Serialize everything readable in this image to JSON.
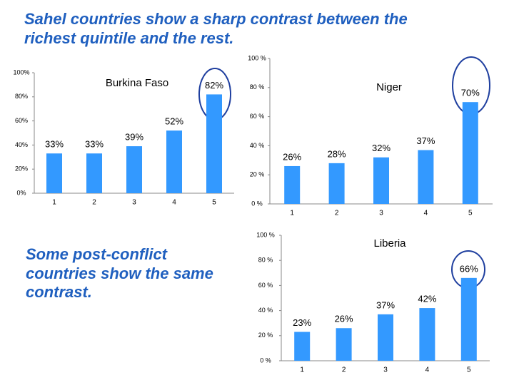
{
  "title": [
    "Sahel countries show a sharp contrast between the",
    "richest quintile and the rest."
  ],
  "note": [
    "Some post-conflict",
    "countries show the same",
    "contrast."
  ],
  "chart_data": [
    {
      "type": "bar",
      "title": "Burkina Faso",
      "categories": [
        "1",
        "2",
        "3",
        "4",
        "5"
      ],
      "values": [
        33,
        33,
        39,
        52,
        82
      ],
      "value_labels": [
        "33%",
        "33%",
        "39%",
        "52%",
        "82%"
      ],
      "color": "#3399ff",
      "ylim": [
        0,
        100
      ],
      "yticks": [
        {
          "value": 0,
          "label": "0%"
        },
        {
          "value": 20,
          "label": "20%"
        },
        {
          "value": 40,
          "label": "40%"
        },
        {
          "value": 60,
          "label": "60%"
        },
        {
          "value": 80,
          "label": "80%"
        },
        {
          "value": 100,
          "label": "100%"
        }
      ],
      "grid": false
    },
    {
      "type": "bar",
      "title": "Niger",
      "categories": [
        "1",
        "2",
        "3",
        "4",
        "5"
      ],
      "values": [
        26,
        28,
        32,
        37,
        70
      ],
      "value_labels": [
        "26%",
        "28%",
        "32%",
        "37%",
        "70%"
      ],
      "color": "#3399ff",
      "ylim": [
        0,
        100
      ],
      "yticks": [
        {
          "value": 0,
          "label": "0 %"
        },
        {
          "value": 20,
          "label": "20 %"
        },
        {
          "value": 40,
          "label": "40 %"
        },
        {
          "value": 60,
          "label": "60 %"
        },
        {
          "value": 80,
          "label": "80 %"
        },
        {
          "value": 100,
          "label": "100 %"
        }
      ],
      "grid": false
    },
    {
      "type": "bar",
      "title": "Liberia",
      "categories": [
        "1",
        "2",
        "3",
        "4",
        "5"
      ],
      "values": [
        23,
        26,
        37,
        42,
        66
      ],
      "value_labels": [
        "23%",
        "26%",
        "37%",
        "42%",
        "66%"
      ],
      "color": "#3399ff",
      "ylim": [
        0,
        100
      ],
      "yticks": [
        {
          "value": 0,
          "label": "0 %"
        },
        {
          "value": 20,
          "label": "20 %"
        },
        {
          "value": 40,
          "label": "40 %"
        },
        {
          "value": 60,
          "label": "60 %"
        },
        {
          "value": 80,
          "label": "80 %"
        },
        {
          "value": 100,
          "label": "100 %"
        }
      ],
      "grid": false
    }
  ]
}
